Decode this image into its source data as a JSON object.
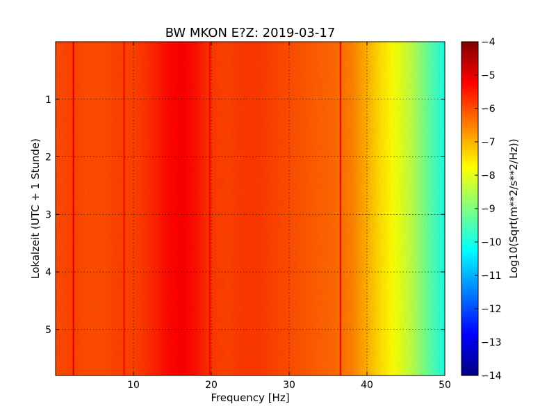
{
  "chart_data": {
    "type": "heatmap",
    "title": "BW MKON E?Z: 2019-03-17",
    "xlabel": "Frequency [Hz]",
    "ylabel": "Lokalzeit (UTC + 1 Stunde)",
    "xlim": [
      0,
      50
    ],
    "ylim": [
      0,
      5.8
    ],
    "y_inverted": true,
    "grid": true,
    "x_ticks": [
      10,
      20,
      30,
      40,
      50
    ],
    "x_tick_labels": [
      "10",
      "20",
      "30",
      "40",
      "50"
    ],
    "y_ticks": [
      1,
      2,
      3,
      4,
      5
    ],
    "y_tick_labels": [
      "1",
      "2",
      "3",
      "4",
      "5"
    ],
    "colorbar": {
      "label": "Log10(Sqrt(m**2/s**2/Hz))",
      "range": [
        -14,
        -4
      ],
      "ticks": [
        -4,
        -5,
        -6,
        -7,
        -8,
        -9,
        -10,
        -11,
        -12,
        -13,
        -14
      ],
      "tick_labels": [
        "−4",
        "−5",
        "−6",
        "−7",
        "−8",
        "−9",
        "−10",
        "−11",
        "−12",
        "−13",
        "−14"
      ],
      "colormap": "jet"
    },
    "spectrum_profile": {
      "freq_hz": [
        0,
        2,
        4,
        6,
        8,
        10,
        12,
        14,
        16,
        18,
        20,
        22,
        24,
        26,
        28,
        30,
        32,
        34,
        36,
        38,
        40,
        42,
        44,
        46,
        48,
        50
      ],
      "log_amplitude": [
        -6.0,
        -5.9,
        -6.0,
        -6.0,
        -5.9,
        -5.9,
        -5.7,
        -5.4,
        -5.2,
        -5.4,
        -5.8,
        -5.9,
        -5.8,
        -5.8,
        -5.9,
        -6.0,
        -6.1,
        -6.2,
        -6.3,
        -6.5,
        -7.0,
        -7.5,
        -7.9,
        -8.5,
        -9.3,
        -10.0
      ]
    },
    "line_features": [
      {
        "freq_hz": 2.3,
        "log_amplitude": -5.0
      },
      {
        "freq_hz": 8.8,
        "log_amplitude": -5.3
      },
      {
        "freq_hz": 19.8,
        "log_amplitude": -5.2
      },
      {
        "freq_hz": 36.6,
        "log_amplitude": -5.0
      }
    ]
  }
}
